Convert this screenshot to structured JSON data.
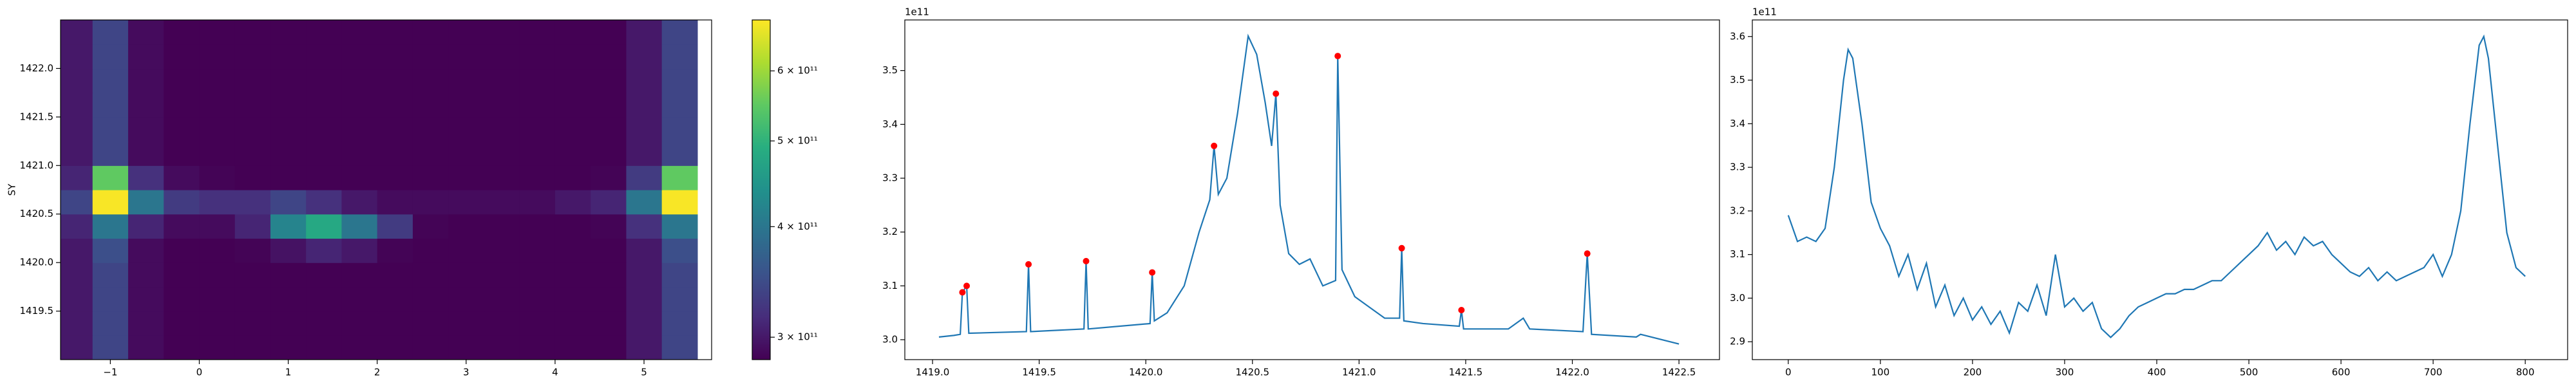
{
  "chart_data": [
    {
      "type": "heatmap",
      "ylabel": "SY",
      "colormap": "viridis",
      "x": [
        -1.4,
        -1.0,
        -0.6,
        -0.2,
        0.2,
        0.6,
        1.0,
        1.4,
        1.8,
        2.2,
        2.6,
        3.0,
        3.4,
        3.8,
        4.2,
        4.6,
        5.0,
        5.4
      ],
      "y": [
        1419.125,
        1419.375,
        1419.625,
        1419.875,
        1420.125,
        1420.375,
        1420.625,
        1420.875,
        1421.125,
        1421.375,
        1421.625,
        1421.875,
        1422.125,
        1422.375
      ],
      "z": [
        [
          300000000000.0,
          340000000000.0,
          290000000000.0,
          280000000000.0,
          280000000000.0,
          280000000000.0,
          280000000000.0,
          280000000000.0,
          280000000000.0,
          275000000000.0,
          275000000000.0,
          275000000000.0,
          275000000000.0,
          275000000000.0,
          275000000000.0,
          280000000000.0,
          300000000000.0,
          340000000000.0
        ],
        [
          300000000000.0,
          340000000000.0,
          290000000000.0,
          280000000000.0,
          280000000000.0,
          280000000000.0,
          280000000000.0,
          280000000000.0,
          280000000000.0,
          275000000000.0,
          275000000000.0,
          275000000000.0,
          275000000000.0,
          275000000000.0,
          275000000000.0,
          280000000000.0,
          300000000000.0,
          340000000000.0
        ],
        [
          300000000000.0,
          340000000000.0,
          290000000000.0,
          280000000000.0,
          280000000000.0,
          280000000000.0,
          280000000000.0,
          280000000000.0,
          280000000000.0,
          275000000000.0,
          275000000000.0,
          275000000000.0,
          275000000000.0,
          275000000000.0,
          275000000000.0,
          280000000000.0,
          300000000000.0,
          340000000000.0
        ],
        [
          300000000000.0,
          340000000000.0,
          290000000000.0,
          280000000000.0,
          280000000000.0,
          280000000000.0,
          280000000000.0,
          280000000000.0,
          280000000000.0,
          275000000000.0,
          275000000000.0,
          275000000000.0,
          275000000000.0,
          275000000000.0,
          275000000000.0,
          280000000000.0,
          300000000000.0,
          340000000000.0
        ],
        [
          300000000000.0,
          350000000000.0,
          290000000000.0,
          280000000000.0,
          280000000000.0,
          285000000000.0,
          295000000000.0,
          310000000000.0,
          300000000000.0,
          285000000000.0,
          275000000000.0,
          275000000000.0,
          275000000000.0,
          275000000000.0,
          275000000000.0,
          280000000000.0,
          300000000000.0,
          350000000000.0
        ],
        [
          310000000000.0,
          400000000000.0,
          310000000000.0,
          290000000000.0,
          290000000000.0,
          310000000000.0,
          420000000000.0,
          480000000000.0,
          400000000000.0,
          330000000000.0,
          285000000000.0,
          280000000000.0,
          280000000000.0,
          280000000000.0,
          280000000000.0,
          285000000000.0,
          320000000000.0,
          400000000000.0
        ],
        [
          340000000000.0,
          680000000000.0,
          400000000000.0,
          330000000000.0,
          320000000000.0,
          320000000000.0,
          340000000000.0,
          320000000000.0,
          300000000000.0,
          290000000000.0,
          290000000000.0,
          290000000000.0,
          290000000000.0,
          290000000000.0,
          300000000000.0,
          310000000000.0,
          400000000000.0,
          680000000000.0
        ],
        [
          310000000000.0,
          550000000000.0,
          320000000000.0,
          290000000000.0,
          285000000000.0,
          280000000000.0,
          280000000000.0,
          280000000000.0,
          280000000000.0,
          275000000000.0,
          275000000000.0,
          275000000000.0,
          275000000000.0,
          275000000000.0,
          280000000000.0,
          285000000000.0,
          330000000000.0,
          550000000000.0
        ],
        [
          300000000000.0,
          340000000000.0,
          290000000000.0,
          280000000000.0,
          280000000000.0,
          280000000000.0,
          280000000000.0,
          280000000000.0,
          280000000000.0,
          275000000000.0,
          275000000000.0,
          275000000000.0,
          275000000000.0,
          275000000000.0,
          275000000000.0,
          280000000000.0,
          300000000000.0,
          340000000000.0
        ],
        [
          300000000000.0,
          340000000000.0,
          290000000000.0,
          280000000000.0,
          280000000000.0,
          280000000000.0,
          280000000000.0,
          280000000000.0,
          280000000000.0,
          275000000000.0,
          275000000000.0,
          275000000000.0,
          275000000000.0,
          275000000000.0,
          275000000000.0,
          280000000000.0,
          300000000000.0,
          340000000000.0
        ],
        [
          300000000000.0,
          340000000000.0,
          290000000000.0,
          280000000000.0,
          280000000000.0,
          280000000000.0,
          280000000000.0,
          280000000000.0,
          280000000000.0,
          275000000000.0,
          275000000000.0,
          275000000000.0,
          275000000000.0,
          275000000000.0,
          275000000000.0,
          280000000000.0,
          300000000000.0,
          340000000000.0
        ],
        [
          300000000000.0,
          340000000000.0,
          290000000000.0,
          280000000000.0,
          280000000000.0,
          280000000000.0,
          280000000000.0,
          280000000000.0,
          280000000000.0,
          275000000000.0,
          275000000000.0,
          275000000000.0,
          275000000000.0,
          275000000000.0,
          275000000000.0,
          280000000000.0,
          300000000000.0,
          340000000000.0
        ],
        [
          300000000000.0,
          340000000000.0,
          290000000000.0,
          280000000000.0,
          280000000000.0,
          280000000000.0,
          280000000000.0,
          280000000000.0,
          280000000000.0,
          275000000000.0,
          275000000000.0,
          275000000000.0,
          275000000000.0,
          275000000000.0,
          275000000000.0,
          280000000000.0,
          300000000000.0,
          340000000000.0
        ],
        [
          300000000000.0,
          340000000000.0,
          290000000000.0,
          280000000000.0,
          280000000000.0,
          280000000000.0,
          280000000000.0,
          280000000000.0,
          280000000000.0,
          275000000000.0,
          275000000000.0,
          275000000000.0,
          275000000000.0,
          275000000000.0,
          275000000000.0,
          280000000000.0,
          300000000000.0,
          340000000000.0
        ]
      ],
      "xlim": [
        -1.56,
        5.76
      ],
      "ylim": [
        1419.0,
        1422.5
      ],
      "xticks": [
        {
          "value": -1,
          "label": "−1"
        },
        0,
        1,
        2,
        3,
        4,
        5
      ],
      "yticks": [
        1419.5,
        {
          "value": 1420,
          "label": "1420.0"
        },
        1420.5,
        {
          "value": 1421,
          "label": "1421.0"
        },
        1421.5,
        {
          "value": 1422,
          "label": "1422.0"
        }
      ],
      "colorbar": {
        "scale": "log",
        "lim": [
          283000000000.0,
          685000000000.0
        ],
        "ticks": [
          {
            "value": 300000000000.0,
            "label": "3 × 10¹¹"
          },
          {
            "value": 400000000000.0,
            "label": "4 × 10¹¹"
          },
          {
            "value": 500000000000.0,
            "label": "5 × 10¹¹"
          },
          {
            "value": 600000000000.0,
            "label": "6 × 10¹¹"
          }
        ]
      }
    },
    {
      "type": "line",
      "offset_text": "1e11",
      "xlim": [
        1418.87,
        1422.69
      ],
      "ylim": [
        2.963,
        3.594
      ],
      "xticks": [
        {
          "value": 1419,
          "label": "1419.0"
        },
        1419.5,
        {
          "value": 1420,
          "label": "1420.0"
        },
        1420.5,
        {
          "value": 1421,
          "label": "1421.0"
        },
        1421.5,
        {
          "value": 1422,
          "label": "1422.0"
        },
        1422.5
      ],
      "yticks": [
        {
          "value": 3,
          "label": "3.0"
        },
        3.1,
        3.2,
        3.3,
        3.4,
        3.5
      ],
      "series": [
        {
          "color": "#1f77b4",
          "x": [
            1419.03,
            1419.1,
            1419.13,
            1419.14,
            1419.16,
            1419.17,
            1419.44,
            1419.45,
            1419.46,
            1419.71,
            1419.72,
            1419.73,
            1420.02,
            1420.03,
            1420.04,
            1420.1,
            1420.18,
            1420.25,
            1420.3,
            1420.32,
            1420.34,
            1420.38,
            1420.43,
            1420.48,
            1420.52,
            1420.56,
            1420.59,
            1420.61,
            1420.63,
            1420.67,
            1420.72,
            1420.77,
            1420.83,
            1420.89,
            1420.9,
            1420.92,
            1420.98,
            1421.05,
            1421.12,
            1421.19,
            1421.2,
            1421.21,
            1421.3,
            1421.47,
            1421.48,
            1421.49,
            1421.7,
            1421.77,
            1421.8,
            1422.05,
            1422.07,
            1422.09,
            1422.3,
            1422.32,
            1422.5
          ],
          "values": [
            3.005,
            3.008,
            3.01,
            3.088,
            3.1,
            3.012,
            3.015,
            3.14,
            3.015,
            3.02,
            3.146,
            3.02,
            3.03,
            3.125,
            3.035,
            3.05,
            3.1,
            3.2,
            3.26,
            3.36,
            3.27,
            3.3,
            3.42,
            3.564,
            3.53,
            3.44,
            3.36,
            3.457,
            3.25,
            3.16,
            3.14,
            3.15,
            3.1,
            3.11,
            3.527,
            3.13,
            3.08,
            3.06,
            3.04,
            3.04,
            3.17,
            3.035,
            3.03,
            3.025,
            3.055,
            3.02,
            3.02,
            3.04,
            3.02,
            3.015,
            3.16,
            3.01,
            3.005,
            3.01,
            2.992
          ]
        }
      ],
      "peaks": {
        "color": "#ff0000",
        "x": [
          1419.14,
          1419.16,
          1419.45,
          1419.72,
          1420.03,
          1420.32,
          1420.61,
          1420.9,
          1421.2,
          1421.48,
          1422.07
        ],
        "values": [
          3.088,
          3.1,
          3.14,
          3.146,
          3.125,
          3.36,
          3.457,
          3.527,
          3.17,
          3.055,
          3.16
        ]
      }
    },
    {
      "type": "line",
      "offset_text": "1e11",
      "xlim": [
        -39,
        846
      ],
      "ylim": [
        2.859,
        3.638
      ],
      "xticks": [
        0,
        100,
        200,
        300,
        400,
        500,
        600,
        700,
        800
      ],
      "yticks": [
        2.9,
        {
          "value": 3,
          "label": "3.0"
        },
        3.1,
        3.2,
        3.3,
        3.4,
        3.5,
        3.6
      ],
      "series": [
        {
          "color": "#1f77b4",
          "x": [
            0,
            10,
            20,
            30,
            40,
            50,
            60,
            65,
            70,
            80,
            90,
            100,
            110,
            120,
            130,
            140,
            150,
            160,
            170,
            180,
            190,
            200,
            210,
            220,
            230,
            240,
            250,
            260,
            270,
            280,
            290,
            300,
            310,
            320,
            330,
            340,
            350,
            360,
            370,
            380,
            390,
            400,
            410,
            420,
            430,
            440,
            450,
            460,
            470,
            480,
            490,
            500,
            510,
            520,
            530,
            540,
            550,
            560,
            570,
            580,
            590,
            600,
            610,
            620,
            630,
            640,
            650,
            660,
            670,
            680,
            690,
            700,
            710,
            720,
            730,
            740,
            750,
            755,
            760,
            770,
            780,
            790,
            800
          ],
          "values": [
            3.19,
            3.13,
            3.14,
            3.13,
            3.16,
            3.3,
            3.5,
            3.57,
            3.55,
            3.4,
            3.22,
            3.16,
            3.12,
            3.05,
            3.1,
            3.02,
            3.08,
            2.98,
            3.03,
            2.96,
            3.0,
            2.95,
            2.98,
            2.94,
            2.97,
            2.92,
            2.99,
            2.97,
            3.03,
            2.96,
            3.1,
            2.98,
            3.0,
            2.97,
            2.99,
            2.93,
            2.91,
            2.93,
            2.96,
            2.98,
            2.99,
            3.0,
            3.01,
            3.01,
            3.02,
            3.02,
            3.03,
            3.04,
            3.04,
            3.06,
            3.08,
            3.1,
            3.12,
            3.15,
            3.11,
            3.13,
            3.1,
            3.14,
            3.12,
            3.13,
            3.1,
            3.08,
            3.06,
            3.05,
            3.07,
            3.04,
            3.06,
            3.04,
            3.05,
            3.06,
            3.07,
            3.1,
            3.05,
            3.1,
            3.2,
            3.4,
            3.58,
            3.6,
            3.55,
            3.35,
            3.15,
            3.07,
            3.05
          ]
        }
      ]
    }
  ]
}
